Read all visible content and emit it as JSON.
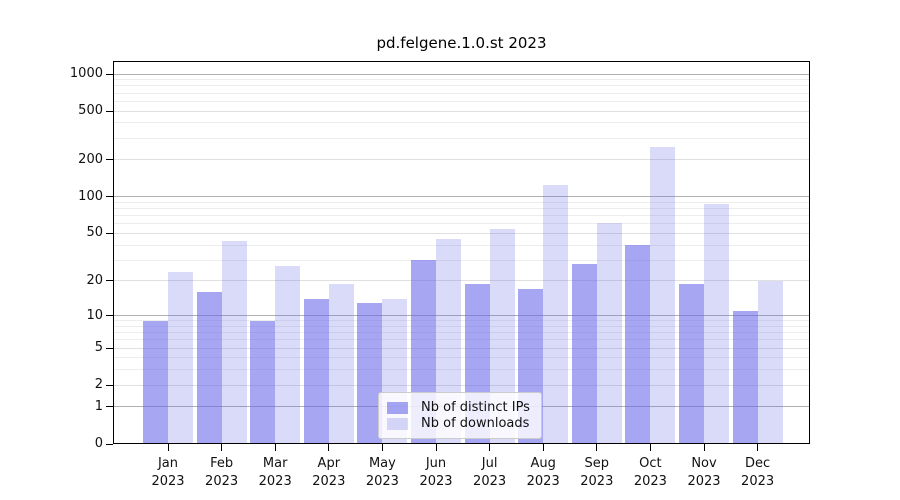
{
  "title": "pd.felgene.1.0.st 2023",
  "chart_data": {
    "type": "bar",
    "title": "pd.felgene.1.0.st 2023",
    "categories": [
      "Jan",
      "Feb",
      "Mar",
      "Apr",
      "May",
      "Jun",
      "Jul",
      "Aug",
      "Sep",
      "Oct",
      "Nov",
      "Dec"
    ],
    "year": "2023",
    "series": [
      {
        "name": "Nb of distinct IPs",
        "values": [
          9,
          16,
          9,
          14,
          13,
          30,
          19,
          17,
          28,
          40,
          19,
          11
        ],
        "color": "rgba(102,102,232,0.58)"
      },
      {
        "name": "Nb of downloads",
        "values": [
          24,
          43,
          27,
          19,
          14,
          45,
          54,
          125,
          61,
          255,
          87,
          20
        ],
        "color": "rgba(102,102,232,0.24)"
      }
    ],
    "yscale": "log1p",
    "yticks": [
      0,
      1,
      2,
      5,
      10,
      20,
      50,
      100,
      200,
      500,
      1000
    ],
    "ytick_labels": [
      "0",
      "1",
      "2",
      "5",
      "10",
      "20",
      "50",
      "100",
      "200",
      "500",
      "1000"
    ],
    "major_gridlines": [
      1,
      10,
      100,
      1000
    ],
    "mid_gridlines": [
      2,
      5,
      20,
      50,
      200,
      500
    ],
    "minor_gridlines": [
      3,
      4,
      6,
      7,
      8,
      9,
      30,
      40,
      60,
      70,
      80,
      90,
      300,
      400,
      600,
      700,
      800,
      900
    ],
    "ylim": [
      0,
      1276
    ],
    "grid": true,
    "legend_position": "lower-center",
    "legend_labels": [
      "Nb of distinct IPs",
      "Nb of downloads"
    ]
  },
  "colors": {
    "bar_distinct_ips": "rgba(102,102,232,0.58)",
    "bar_downloads": "rgba(102,102,232,0.24)",
    "grid_major": "#b0b0b0",
    "grid_mid": "#e0e0e0",
    "grid_minor": "#ededed",
    "spine": "#000000",
    "legend_border": "#cccccc"
  }
}
